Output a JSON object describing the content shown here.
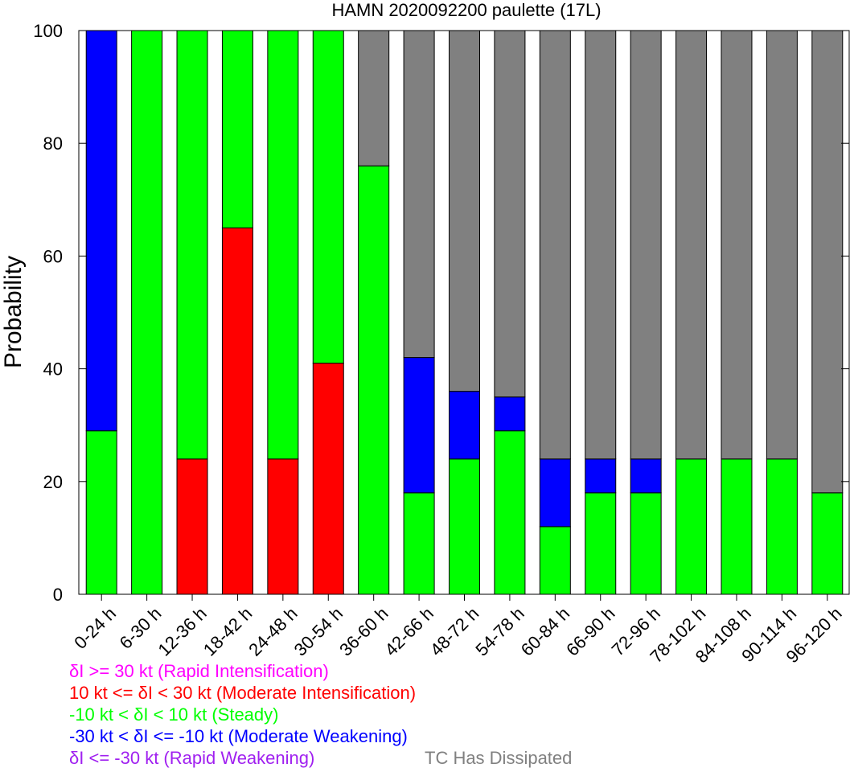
{
  "chart_data": {
    "type": "bar",
    "stacked": true,
    "title": "HAMN 2020092200 paulette (17L)",
    "ylabel": "Probability",
    "xlabel": "",
    "ylim": [
      0,
      100
    ],
    "yticks": [
      "0",
      "20",
      "40",
      "60",
      "80",
      "100"
    ],
    "categories": [
      "0-24 h",
      "6-30 h",
      "12-36 h",
      "18-42 h",
      "24-48 h",
      "30-54 h",
      "36-60 h",
      "42-66 h",
      "48-72 h",
      "54-78 h",
      "60-84 h",
      "66-90 h",
      "72-96 h",
      "78-102 h",
      "84-108 h",
      "90-114 h",
      "96-120 h"
    ],
    "series": [
      {
        "key": "ri",
        "color": "#ff00ff",
        "values": [
          0,
          0,
          0,
          0,
          0,
          0,
          0,
          0,
          0,
          0,
          0,
          0,
          0,
          0,
          0,
          0,
          0
        ]
      },
      {
        "key": "mi",
        "color": "#ff0000",
        "values": [
          0,
          0,
          24,
          65,
          24,
          41,
          0,
          0,
          0,
          0,
          0,
          0,
          0,
          0,
          0,
          0,
          0
        ]
      },
      {
        "key": "steady",
        "color": "#00ff00",
        "values": [
          29,
          100,
          76,
          35,
          76,
          59,
          76,
          18,
          24,
          29,
          12,
          18,
          18,
          24,
          24,
          24,
          18
        ]
      },
      {
        "key": "mw",
        "color": "#0000ff",
        "values": [
          71,
          0,
          0,
          0,
          0,
          0,
          0,
          24,
          12,
          6,
          12,
          6,
          6,
          0,
          0,
          0,
          0
        ]
      },
      {
        "key": "rw",
        "color": "#a020f0",
        "values": [
          0,
          0,
          0,
          0,
          0,
          0,
          0,
          0,
          0,
          0,
          0,
          0,
          0,
          0,
          0,
          0,
          0
        ]
      },
      {
        "key": "dissipated",
        "color": "#808080",
        "values": [
          0,
          0,
          0,
          0,
          0,
          0,
          24,
          58,
          64,
          65,
          76,
          76,
          76,
          76,
          76,
          76,
          82
        ]
      }
    ],
    "legend_entries": [
      {
        "text": "δI >= 30 kt (Rapid Intensification)",
        "color": "#ff00ff"
      },
      {
        "text": "10 kt <= δI < 30 kt (Moderate Intensification)",
        "color": "#ff0000"
      },
      {
        "text": "-10 kt < δI < 10 kt (Steady)",
        "color": "#00ff00"
      },
      {
        "text": "-30 kt < δI <= -10 kt (Moderate Weakening)",
        "color": "#0000ff"
      },
      {
        "text": "δI <= -30 kt (Rapid Weakening)",
        "color": "#a020f0"
      }
    ],
    "dissipated_label": {
      "text": "TC Has Dissipated",
      "color": "#808080"
    },
    "legend_position": "bottom-left",
    "grid": false
  }
}
